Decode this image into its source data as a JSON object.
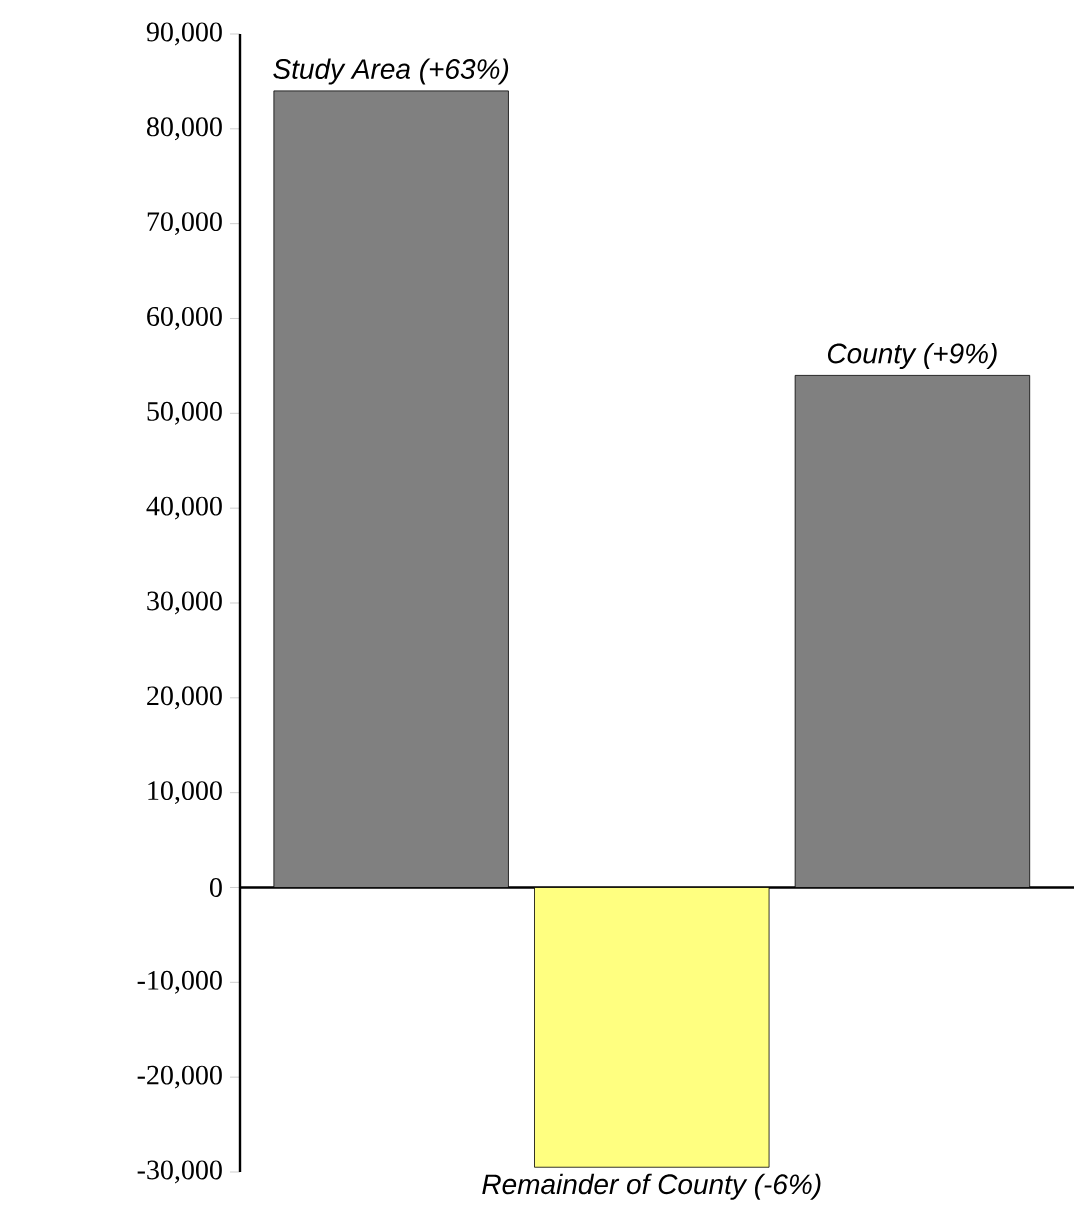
{
  "chart_data": {
    "type": "bar",
    "categories": [
      "Study Area (+63%)",
      "Remainder of County (-6%)",
      "County (+9%)"
    ],
    "values": [
      84000,
      -29500,
      54000
    ],
    "colors": [
      "#808080",
      "#ffff80",
      "#808080"
    ],
    "ylim": [
      -30000,
      90000
    ],
    "yticks": [
      {
        "value": -30000,
        "label": "-30,000"
      },
      {
        "value": -20000,
        "label": "-20,000"
      },
      {
        "value": -10000,
        "label": "-10,000"
      },
      0,
      {
        "value": 10000,
        "label": "10,000"
      },
      {
        "value": 20000,
        "label": "20,000"
      },
      {
        "value": 30000,
        "label": "30,000"
      },
      {
        "value": 40000,
        "label": "40,000"
      },
      {
        "value": 50000,
        "label": "50,000"
      },
      {
        "value": 60000,
        "label": "60,000"
      },
      {
        "value": 70000,
        "label": "70,000"
      },
      {
        "value": 80000,
        "label": "80,000"
      },
      {
        "value": 90000,
        "label": "90,000"
      }
    ]
  }
}
